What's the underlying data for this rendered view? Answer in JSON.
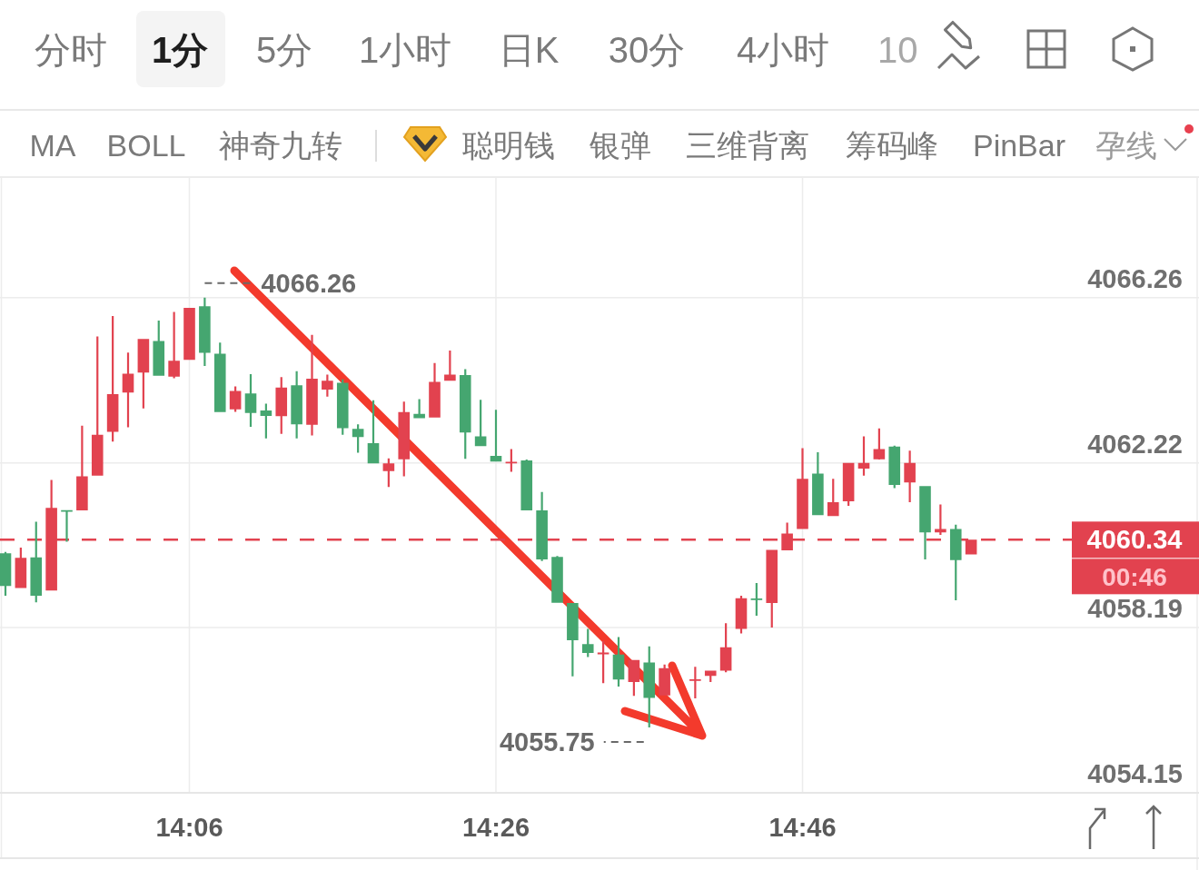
{
  "chart_data": {
    "type": "candlestick",
    "categories": [
      null,
      null,
      null,
      null,
      null,
      null,
      null,
      null,
      null,
      null,
      null,
      null,
      "14:06",
      null,
      null,
      null,
      null,
      null,
      null,
      null,
      null,
      null,
      null,
      null,
      null,
      null,
      null,
      null,
      null,
      null,
      null,
      null,
      "14:26",
      null,
      null,
      null,
      null,
      null,
      null,
      null,
      null,
      null,
      null,
      null,
      null,
      null,
      null,
      null,
      null,
      null,
      null,
      null,
      "14:46",
      null,
      null,
      null,
      null,
      null,
      null,
      null,
      null,
      null,
      null,
      null
    ],
    "ohlc": [
      [
        4060.01,
        4060.04,
        4058.97,
        4059.21
      ],
      [
        4059.16,
        4060.15,
        4059.16,
        4059.9
      ],
      [
        4059.91,
        4060.78,
        4058.81,
        4058.97
      ],
      [
        4059.1,
        4061.8,
        4059.1,
        4061.12
      ],
      [
        4061.06,
        4061.06,
        4060.29,
        4061.03
      ],
      [
        4061.06,
        4063.13,
        4061.06,
        4061.89
      ],
      [
        4061.91,
        4065.31,
        4061.91,
        4062.91
      ],
      [
        4062.98,
        4065.81,
        4062.74,
        4063.9
      ],
      [
        4063.94,
        4064.92,
        4063.09,
        4064.4
      ],
      [
        4064.43,
        4065.25,
        4063.55,
        4065.25
      ],
      [
        4065.2,
        4065.7,
        4064.35,
        4064.35
      ],
      [
        4064.33,
        4065.91,
        4064.29,
        4064.72
      ],
      [
        4064.74,
        4066.01,
        4064.74,
        4066.01
      ],
      [
        4066.05,
        4066.26,
        4064.59,
        4064.91
      ],
      [
        4064.89,
        4065.16,
        4063.46,
        4063.46
      ],
      [
        4063.53,
        4064.09,
        4063.47,
        4063.98
      ],
      [
        4063.92,
        4064.39,
        4063.1,
        4063.44
      ],
      [
        4063.5,
        4063.67,
        4062.82,
        4063.37
      ],
      [
        4063.36,
        4064.32,
        4062.93,
        4064.06
      ],
      [
        4064.12,
        4064.46,
        4062.82,
        4063.16
      ],
      [
        4063.15,
        4065.35,
        4062.89,
        4064.28
      ],
      [
        4064.01,
        4064.38,
        4063.84,
        4064.23
      ],
      [
        4064.18,
        4064.26,
        4062.91,
        4063.07
      ],
      [
        4063.05,
        4063.16,
        4062.47,
        4062.85
      ],
      [
        4062.7,
        4063.75,
        4062.21,
        4062.21
      ],
      [
        4062.02,
        4062.33,
        4061.63,
        4062.21
      ],
      [
        4062.31,
        4063.72,
        4061.89,
        4063.46
      ],
      [
        4063.42,
        4063.78,
        4063.31,
        4063.31
      ],
      [
        4063.33,
        4064.66,
        4063.33,
        4064.2
      ],
      [
        4064.23,
        4064.97,
        4064.23,
        4064.38
      ],
      [
        4064.37,
        4064.51,
        4062.32,
        4062.96
      ],
      [
        4062.87,
        4063.76,
        4062.63,
        4062.63
      ],
      [
        4062.39,
        4063.52,
        4062.25,
        4062.25
      ],
      [
        4062.21,
        4062.56,
        4062.0,
        4062.24
      ],
      [
        4062.28,
        4062.3,
        4061.06,
        4061.06
      ],
      [
        4061.06,
        4061.51,
        4059.82,
        4059.86
      ],
      [
        4059.92,
        4059.94,
        4058.8,
        4058.8
      ],
      [
        4058.79,
        4058.79,
        4057.0,
        4057.88
      ],
      [
        4057.79,
        4058.16,
        4057.47,
        4057.57
      ],
      [
        4057.55,
        4057.86,
        4056.83,
        4057.57
      ],
      [
        4057.53,
        4057.96,
        4056.75,
        4056.92
      ],
      [
        4056.86,
        4057.4,
        4056.52,
        4057.4
      ],
      [
        4057.34,
        4057.73,
        4055.75,
        4056.47
      ],
      [
        4056.53,
        4057.29,
        4056.53,
        4057.2
      ],
      null,
      [
        4056.89,
        4057.23,
        4056.46,
        4056.92
      ],
      [
        4057.01,
        4057.14,
        4056.86,
        4057.14
      ],
      [
        4057.14,
        4058.3,
        4057.1,
        4057.71
      ],
      [
        4058.16,
        4058.97,
        4058.05,
        4058.91
      ],
      [
        4058.9,
        4059.28,
        4058.48,
        4058.87
      ],
      [
        4058.79,
        4060.09,
        4058.19,
        4060.09
      ],
      [
        4060.08,
        4060.76,
        4060.08,
        4060.49
      ],
      [
        4060.6,
        4062.58,
        4060.6,
        4061.83
      ],
      [
        4061.96,
        4062.48,
        4060.94,
        4060.94
      ],
      [
        4060.92,
        4061.83,
        4060.92,
        4061.26
      ],
      [
        4061.28,
        4062.22,
        4061.17,
        4062.22
      ],
      [
        4062.08,
        4062.87,
        4061.91,
        4062.22
      ],
      [
        4062.31,
        4063.06,
        4062.3,
        4062.56
      ],
      [
        4062.62,
        4062.64,
        4061.6,
        4061.68
      ],
      [
        4061.74,
        4062.52,
        4061.26,
        4062.22
      ],
      [
        4061.65,
        4061.65,
        4059.86,
        4060.52
      ],
      [
        4060.52,
        4061.2,
        4060.46,
        4060.6
      ],
      [
        4060.6,
        4060.71,
        4058.86,
        4059.84
      ],
      [
        4059.98,
        4060.34,
        4059.98,
        4060.34
      ]
    ],
    "colors": [
      "#45a670",
      "#e2424f",
      "#45a670",
      "#e2424f",
      "#45a670",
      "#e2424f",
      "#e2424f",
      "#e2424f",
      "#e2424f",
      "#e2424f",
      "#45a670",
      "#e2424f",
      "#e2424f",
      "#45a670",
      "#45a670",
      "#e2424f",
      "#45a670",
      "#45a670",
      "#e2424f",
      "#45a670",
      "#e2424f",
      "#e2424f",
      "#45a670",
      "#45a670",
      "#45a670",
      "#e2424f",
      "#e2424f",
      "#45a670",
      "#e2424f",
      "#e2424f",
      "#45a670",
      "#45a670",
      "#45a670",
      "#e2424f",
      "#45a670",
      "#45a670",
      "#45a670",
      "#45a670",
      "#45a670",
      "#e2424f",
      "#45a670",
      "#e2424f",
      "#45a670",
      "#e2424f",
      null,
      "#e2424f",
      "#e2424f",
      "#e2424f",
      "#e2424f",
      "#45a670",
      "#e2424f",
      "#e2424f",
      "#e2424f",
      "#45a670",
      "#e2424f",
      "#e2424f",
      "#e2424f",
      "#e2424f",
      "#45a670",
      "#e2424f",
      "#45a670",
      "#e2424f",
      "#45a670",
      "#e2424f"
    ],
    "ylim": [
      4054.15,
      4069.21
    ],
    "yticks": [
      4054.15,
      4058.19,
      4062.22,
      4066.26
    ],
    "grid": true,
    "ref_lines": [
      {
        "axis": "y",
        "value": 4060.34,
        "label": "4060.34",
        "color": "#e2424f",
        "line_style": "dashed"
      }
    ],
    "annotations": [
      "4066.26",
      "4055.75",
      "00:46",
      "分时",
      "1分",
      "5分",
      "1小时",
      "日K",
      "30分",
      "4小时",
      "10",
      "MA",
      "BOLL",
      "神奇九转",
      "聪明钱",
      "银弹",
      "三维背离",
      "筹码峰",
      "PinBar",
      "孕线"
    ]
  }
}
